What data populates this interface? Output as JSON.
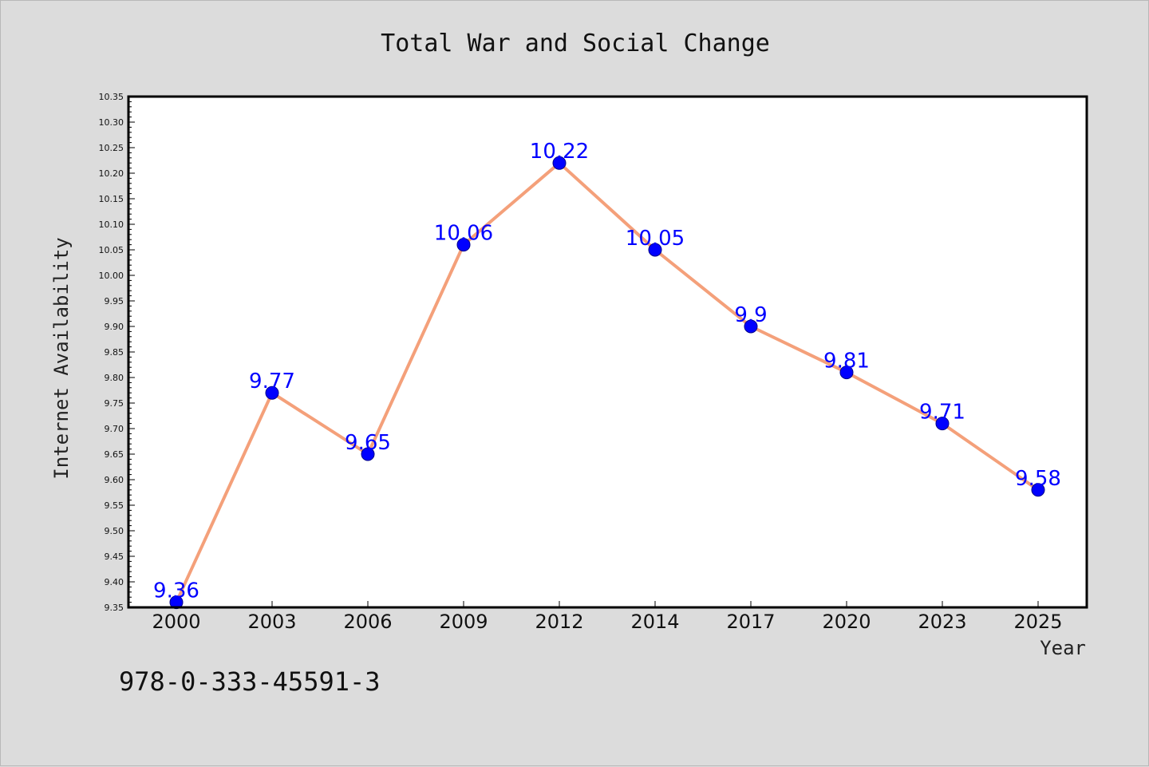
{
  "chart_data": {
    "type": "line",
    "title": "Total War and Social Change",
    "xlabel": "Year",
    "ylabel": "Internet Availability",
    "categories": [
      "2000",
      "2003",
      "2006",
      "2009",
      "2012",
      "2014",
      "2017",
      "2020",
      "2023",
      "2025"
    ],
    "series": [
      {
        "values": [
          9.36,
          9.77,
          9.65,
          10.06,
          10.22,
          10.05,
          9.9,
          9.81,
          9.71,
          9.58
        ],
        "labels": [
          "9.36",
          "9.77",
          "9.65",
          "10.06",
          "10.22",
          "10.05",
          "9.9",
          "9.81",
          "9.71",
          "9.58"
        ],
        "line_color": "#f4a07a",
        "marker_color": "#0000ff"
      }
    ],
    "ylim": [
      9.35,
      10.35
    ],
    "yticks": [
      "9.35",
      "9.40",
      "9.45",
      "9.50",
      "9.55",
      "9.60",
      "9.65",
      "9.70",
      "9.75",
      "9.80",
      "9.85",
      "9.90",
      "9.95",
      "10.00",
      "10.05",
      "10.10",
      "10.15",
      "10.20",
      "10.25",
      "10.30",
      "10.35"
    ],
    "grid": false,
    "legend": "none"
  },
  "annotation": {
    "isbn": "978-0-333-45591-3"
  },
  "colors": {
    "background": "#dcdcdc",
    "plot_background": "#ffffff",
    "line": "#f4a07a",
    "marker": "#0000ff",
    "data_label": "#0000ff"
  }
}
